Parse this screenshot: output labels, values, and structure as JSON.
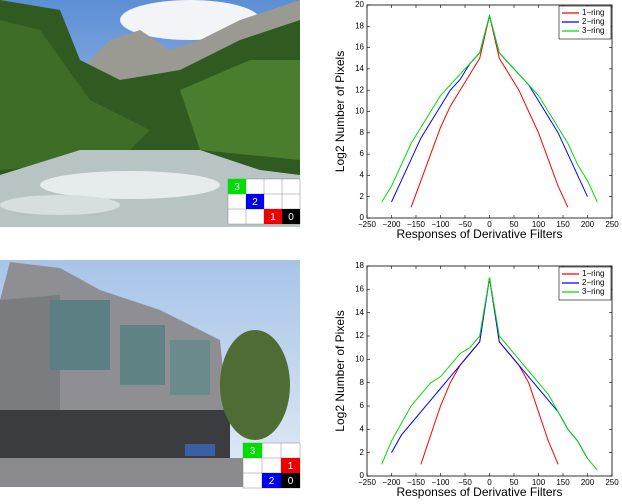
{
  "chart_data": [
    {
      "type": "line",
      "xlabel": "Responses of Derivative Filters",
      "ylabel": "Log2 Number of Pixels",
      "x": [
        -220,
        -200,
        -180,
        -160,
        -140,
        -120,
        -100,
        -80,
        -60,
        -40,
        -20,
        0,
        20,
        40,
        60,
        80,
        100,
        120,
        140,
        160,
        180,
        200,
        220
      ],
      "series": [
        {
          "name": "1−ring",
          "color": "#ff0000",
          "values": [
            null,
            null,
            null,
            1,
            3.5,
            6,
            8.5,
            10.5,
            12,
            13.5,
            15,
            19,
            15,
            13.5,
            12,
            10,
            8,
            5.5,
            3,
            1,
            null,
            null,
            null
          ]
        },
        {
          "name": "2−ring",
          "color": "#0000ff",
          "values": [
            null,
            1.5,
            3.5,
            5.5,
            7.5,
            9,
            10.5,
            12,
            13,
            14.5,
            15.5,
            19,
            15.5,
            14.5,
            13.5,
            12.5,
            11,
            9.5,
            8,
            6,
            4,
            2,
            null
          ]
        },
        {
          "name": "3−ring",
          "color": "#00dd00",
          "values": [
            1.5,
            3,
            5,
            7,
            8.5,
            10,
            11.5,
            12.5,
            13.5,
            14.5,
            15.5,
            19,
            15.5,
            14.5,
            13.5,
            12.5,
            11.5,
            10,
            8.5,
            7,
            5,
            3.5,
            1.5
          ]
        }
      ],
      "xlim": [
        -250,
        250
      ],
      "xticks": [
        {
          "value": -250,
          "label": "−250"
        },
        {
          "value": -200,
          "label": "−200"
        },
        {
          "value": -150,
          "label": "−150"
        },
        {
          "value": -100,
          "label": "−100"
        },
        {
          "value": -50,
          "label": "−50"
        },
        0,
        50,
        100,
        150,
        200,
        250
      ],
      "ylim": [
        0,
        20
      ],
      "yticks": [
        0,
        2,
        4,
        6,
        8,
        10,
        12,
        14,
        16,
        18,
        20
      ],
      "legend": "upper right"
    },
    {
      "type": "line",
      "xlabel": "Responses of Derivative Filters",
      "ylabel": "Log2 Number of Pixels",
      "x": [
        -220,
        -200,
        -180,
        -160,
        -140,
        -120,
        -100,
        -80,
        -60,
        -40,
        -20,
        0,
        20,
        40,
        60,
        80,
        100,
        120,
        140,
        160,
        180,
        200,
        220
      ],
      "series": [
        {
          "name": "1−ring",
          "color": "#ff0000",
          "values": [
            null,
            null,
            null,
            null,
            1,
            3.5,
            6,
            8,
            9.5,
            10.5,
            11.5,
            17,
            11.5,
            10.5,
            9.5,
            8,
            5.5,
            3,
            1,
            null,
            null,
            null,
            null
          ]
        },
        {
          "name": "2−ring",
          "color": "#0000ff",
          "values": [
            null,
            2,
            3.5,
            4.5,
            5.5,
            6.5,
            7.5,
            8.5,
            9.5,
            10.5,
            11.5,
            17,
            11.5,
            10.5,
            9.5,
            8.5,
            7.5,
            6.5,
            5.5,
            4,
            3,
            1.5,
            null
          ]
        },
        {
          "name": "3−ring",
          "color": "#00dd00",
          "values": [
            1,
            3,
            4.5,
            6,
            7,
            8,
            8.5,
            9.5,
            10.5,
            11,
            12,
            17,
            12,
            11,
            10,
            9,
            8,
            7,
            5.5,
            4,
            3,
            1.5,
            0.5
          ]
        }
      ],
      "xlim": [
        -250,
        250
      ],
      "xticks": [
        {
          "value": -250,
          "label": "−250"
        },
        {
          "value": -200,
          "label": "−200"
        },
        {
          "value": -150,
          "label": "−150"
        },
        {
          "value": -100,
          "label": "−100"
        },
        {
          "value": -50,
          "label": "−50"
        },
        0,
        50,
        100,
        150,
        200,
        250
      ],
      "ylim": [
        0,
        18
      ],
      "yticks": [
        0,
        2,
        4,
        6,
        8,
        10,
        12,
        14,
        16,
        18
      ],
      "legend": "upper right"
    }
  ],
  "patches": [
    {
      "labels": [
        "3",
        "2",
        "1",
        "0"
      ]
    },
    {
      "labels": [
        "3",
        "1",
        "2",
        "0"
      ]
    }
  ]
}
